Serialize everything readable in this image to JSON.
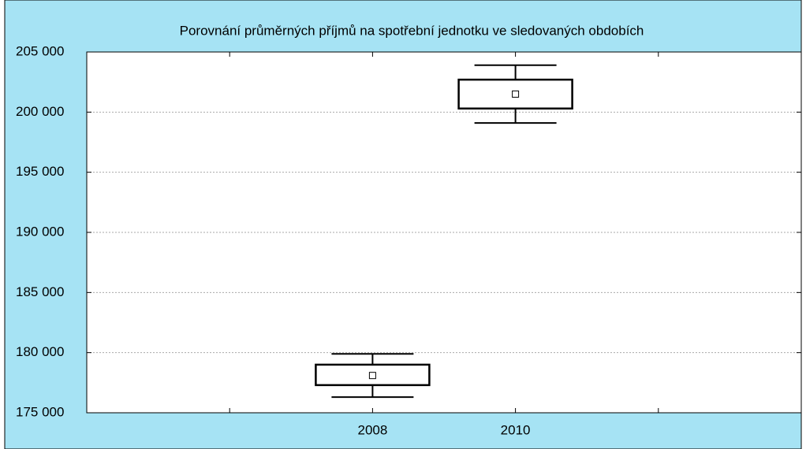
{
  "chart_data": {
    "type": "box",
    "title": "Porovnání průměrných příjmů na spotřební jednotku ve sledovaných obdobích",
    "categories": [
      "2008",
      "2010"
    ],
    "means": [
      178100,
      201500
    ],
    "box_low": [
      177300,
      200300
    ],
    "box_high": [
      179000,
      202700
    ],
    "whisker_low": [
      176300,
      199100
    ],
    "whisker_high": [
      179900,
      203900
    ],
    "ylim": [
      175000,
      205000
    ],
    "yticks": [
      {
        "value": 175000,
        "label": "175 000"
      },
      {
        "value": 180000,
        "label": "180 000"
      },
      {
        "value": 185000,
        "label": "185 000"
      },
      {
        "value": 190000,
        "label": "190 000"
      },
      {
        "value": 195000,
        "label": "195 000"
      },
      {
        "value": 200000,
        "label": "200 000"
      },
      {
        "value": 205000,
        "label": "205 000"
      }
    ],
    "grid": true,
    "color": "#000000"
  }
}
